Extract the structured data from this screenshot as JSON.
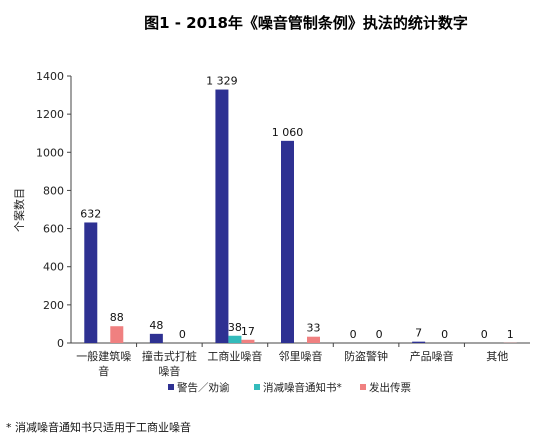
{
  "chart_data": {
    "type": "bar",
    "title": "图1 - 2018年《噪音管制条例》执法的统计数字",
    "ylabel": "个案数目",
    "xlabel": "",
    "ylim": [
      0,
      1400
    ],
    "yticks": [
      0,
      200,
      400,
      600,
      800,
      1000,
      1200,
      1400
    ],
    "grid": false,
    "legend_position": "bottom",
    "categories": [
      "一般建筑噪音",
      "撞击式打桩噪音",
      "工商业噪音",
      "邻里噪音",
      "防盗警钟",
      "产品噪音",
      "其他"
    ],
    "category_lines": [
      [
        "一般建筑噪",
        "音"
      ],
      [
        "撞击式打桩",
        "噪音"
      ],
      [
        "工商业噪音"
      ],
      [
        "邻里噪音"
      ],
      [
        "防盗警钟"
      ],
      [
        "产品噪音"
      ],
      [
        "其他"
      ]
    ],
    "series": [
      {
        "name": "警告／劝谕",
        "color": "#2E3192",
        "values": [
          632,
          48,
          1329,
          1060,
          0,
          7,
          0
        ],
        "labels": [
          "632",
          "48",
          "1 329",
          "1 060",
          "0",
          "7",
          "0"
        ]
      },
      {
        "name": "消减噪音通知书*",
        "color": "#33BBBB",
        "values": [
          null,
          null,
          38,
          null,
          null,
          null,
          null
        ],
        "labels": [
          null,
          null,
          "38",
          null,
          null,
          null,
          null
        ]
      },
      {
        "name": "发出传票",
        "color": "#F08080",
        "values": [
          88,
          0,
          17,
          33,
          0,
          0,
          1
        ],
        "labels": [
          "88",
          "0",
          "17",
          "33",
          "0",
          "0",
          "1"
        ]
      }
    ],
    "footnote": "* 消减噪音通知书只适用于工商业噪音"
  }
}
